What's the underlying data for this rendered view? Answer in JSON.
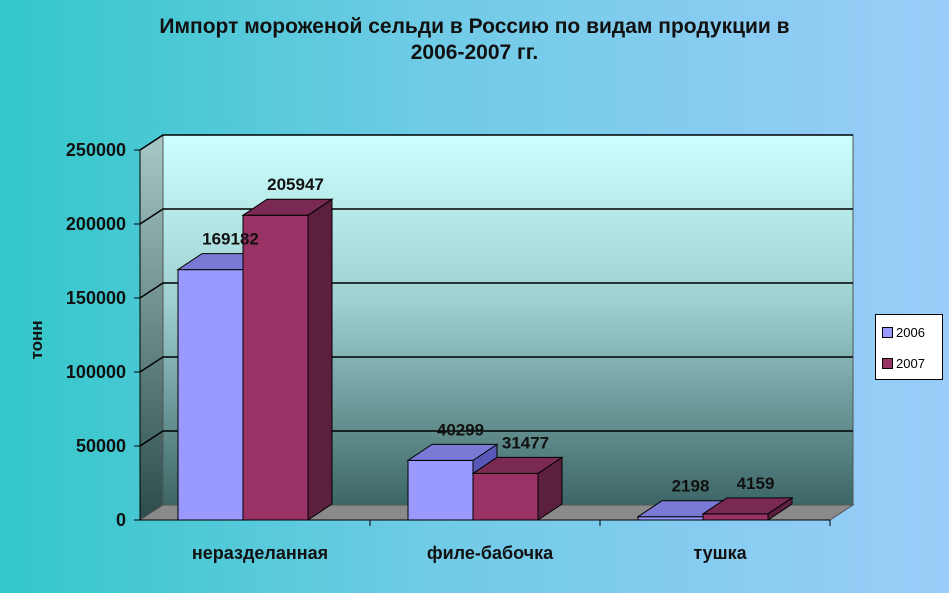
{
  "colors": {
    "2006_front": "#9999ff",
    "2006_side": "#5858b8",
    "2006_top": "#7a7ad6",
    "2007_front": "#993366",
    "2007_side": "#5c1f3d",
    "2007_top": "#7a2952"
  },
  "chart_data": {
    "type": "bar",
    "title_lines": [
      "Импорт мороженой сельди в Россию по видам продукции в",
      "2006-2007 гг."
    ],
    "xlabel": "",
    "ylabel": "тонн",
    "categories": [
      "неразделанная",
      "филе-бабочка",
      "тушка"
    ],
    "series": [
      {
        "name": "2006",
        "values": [
          169182,
          40299,
          2198
        ]
      },
      {
        "name": "2007",
        "values": [
          205947,
          31477,
          4159
        ]
      }
    ],
    "ylim": [
      0,
      250000
    ],
    "yticks": [
      "0",
      "50000",
      "100000",
      "150000",
      "200000",
      "250000"
    ],
    "legend_position": "right",
    "grid": true
  }
}
